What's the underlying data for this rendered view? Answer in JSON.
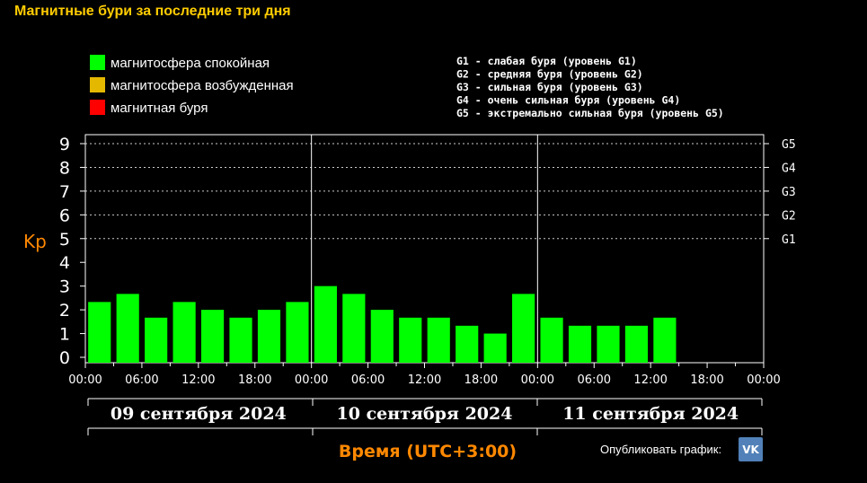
{
  "page": {
    "title": "Магнитные бури за последние три дня",
    "publish_label": "Опубликовать график:",
    "vk_label": "VK"
  },
  "legend": {
    "items": [
      {
        "label": "магнитосфера спокойная",
        "color": "#00ff00"
      },
      {
        "label": "магнитосфера возбужденная",
        "color": "#e5b800"
      },
      {
        "label": "магнитная буря",
        "color": "#ff0000"
      }
    ],
    "g_scale": [
      "G1 - слабая буря (уровень G1)",
      "G2 - средняя буря (уровень G2)",
      "G3 - сильная буря (уровень G3)",
      "G4 - очень сильная буря (уровень G4)",
      "G5 - экстремально сильная буря (уровень G5)"
    ]
  },
  "chart_data": {
    "type": "bar",
    "ylabel": "Kp",
    "xlabel": "Время (UTC+3:00)",
    "ylim": [
      0,
      9
    ],
    "yticks": [
      "0",
      "1",
      "2",
      "3",
      "4",
      "5",
      "6",
      "7",
      "8",
      "9"
    ],
    "right_ticks": [
      {
        "value": 5,
        "label": "G1"
      },
      {
        "value": 6,
        "label": "G2"
      },
      {
        "value": 7,
        "label": "G3"
      },
      {
        "value": 8,
        "label": "G4"
      },
      {
        "value": 9,
        "label": "G5"
      }
    ],
    "dotted_gridlines": [
      5,
      6,
      7,
      8,
      9
    ],
    "days": [
      "09 сентября 2024",
      "10 сентября 2024",
      "11 сентября 2024"
    ],
    "xticks": [
      "00:00",
      "06:00",
      "12:00",
      "18:00",
      "00:00",
      "06:00",
      "12:00",
      "18:00",
      "00:00",
      "06:00",
      "12:00",
      "18:00",
      "00:00"
    ],
    "bar_color": "#00ff00",
    "values": [
      2.33,
      2.67,
      1.67,
      2.33,
      2.0,
      1.67,
      2.0,
      2.33,
      3.0,
      2.67,
      2.0,
      1.67,
      1.67,
      1.33,
      1.0,
      2.67,
      1.67,
      1.33,
      1.33,
      1.33,
      1.67
    ]
  }
}
